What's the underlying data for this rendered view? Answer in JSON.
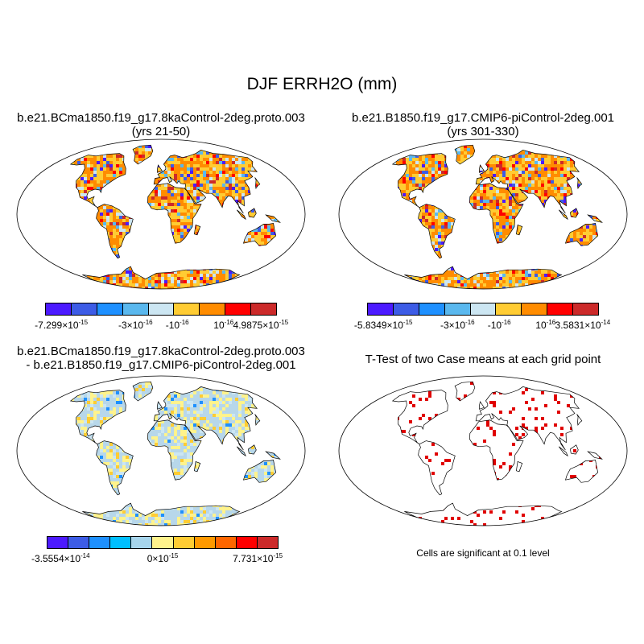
{
  "title": "DJF ERRH2O (mm)",
  "panels": [
    {
      "id": "case1",
      "title_line1": "b.e21.BCma1850.f19_g17.8kaControl-2deg.proto.003",
      "title_line2": "(yrs 21-50)",
      "colorbar": {
        "colors": [
          "#4c1aff",
          "#3d5ce6",
          "#1e90ff",
          "#5ab8ee",
          "#cce6f2",
          "#ffcc33",
          "#ff8c00",
          "#ff0000",
          "#cc2a2a"
        ],
        "labels": [
          {
            "mant": "-7.299×10",
            "exp": "-15"
          },
          {
            "mant": "-3×10",
            "exp": "-16"
          },
          {
            "mant": "-10",
            "exp": "-16"
          },
          {
            "mant": "10",
            "exp": "-16"
          },
          {
            "mant": "4.9875×10",
            "exp": "-15"
          }
        ]
      }
    },
    {
      "id": "case2",
      "title_line1": "b.e21.B1850.f19_g17.CMIP6-piControl-2deg.001",
      "title_line2": "(yrs 301-330)",
      "colorbar": {
        "colors": [
          "#4c1aff",
          "#3d5ce6",
          "#1e90ff",
          "#5ab8ee",
          "#cce6f2",
          "#ffcc33",
          "#ff8c00",
          "#ff0000",
          "#cc2a2a"
        ],
        "labels": [
          {
            "mant": "-5.8349×10",
            "exp": "-15"
          },
          {
            "mant": "-3×10",
            "exp": "-16"
          },
          {
            "mant": "-10",
            "exp": "-16"
          },
          {
            "mant": "10",
            "exp": "-16"
          },
          {
            "mant": "3.5831×10",
            "exp": "-14"
          }
        ]
      }
    },
    {
      "id": "diff",
      "title_line1": "b.e21.BCma1850.f19_g17.8kaControl-2deg.proto.003",
      "title_line2": "- b.e21.B1850.f19_g17.CMIP6-piControl-2deg.001",
      "colorbar": {
        "colors": [
          "#4c1aff",
          "#3d5ce6",
          "#1e90ff",
          "#00bfff",
          "#a6d5ec",
          "#fff38c",
          "#ffcc33",
          "#ff9900",
          "#ff6600",
          "#ff0000",
          "#cc2a2a"
        ],
        "labels": [
          {
            "mant": "-3.5554×10",
            "exp": "-14"
          },
          {
            "mant": "0×10",
            "exp": "-15"
          },
          {
            "mant": "7.731×10",
            "exp": "-15"
          }
        ]
      }
    },
    {
      "id": "ttest",
      "title_line1": "T-Test of two Case means at each grid point",
      "note": "Cells are significant at 0.1 level"
    }
  ],
  "colors": {
    "ocean": "#ffffff",
    "coast": "#000000",
    "significant": "#e00000",
    "diff_land": "#b7d7ea"
  }
}
